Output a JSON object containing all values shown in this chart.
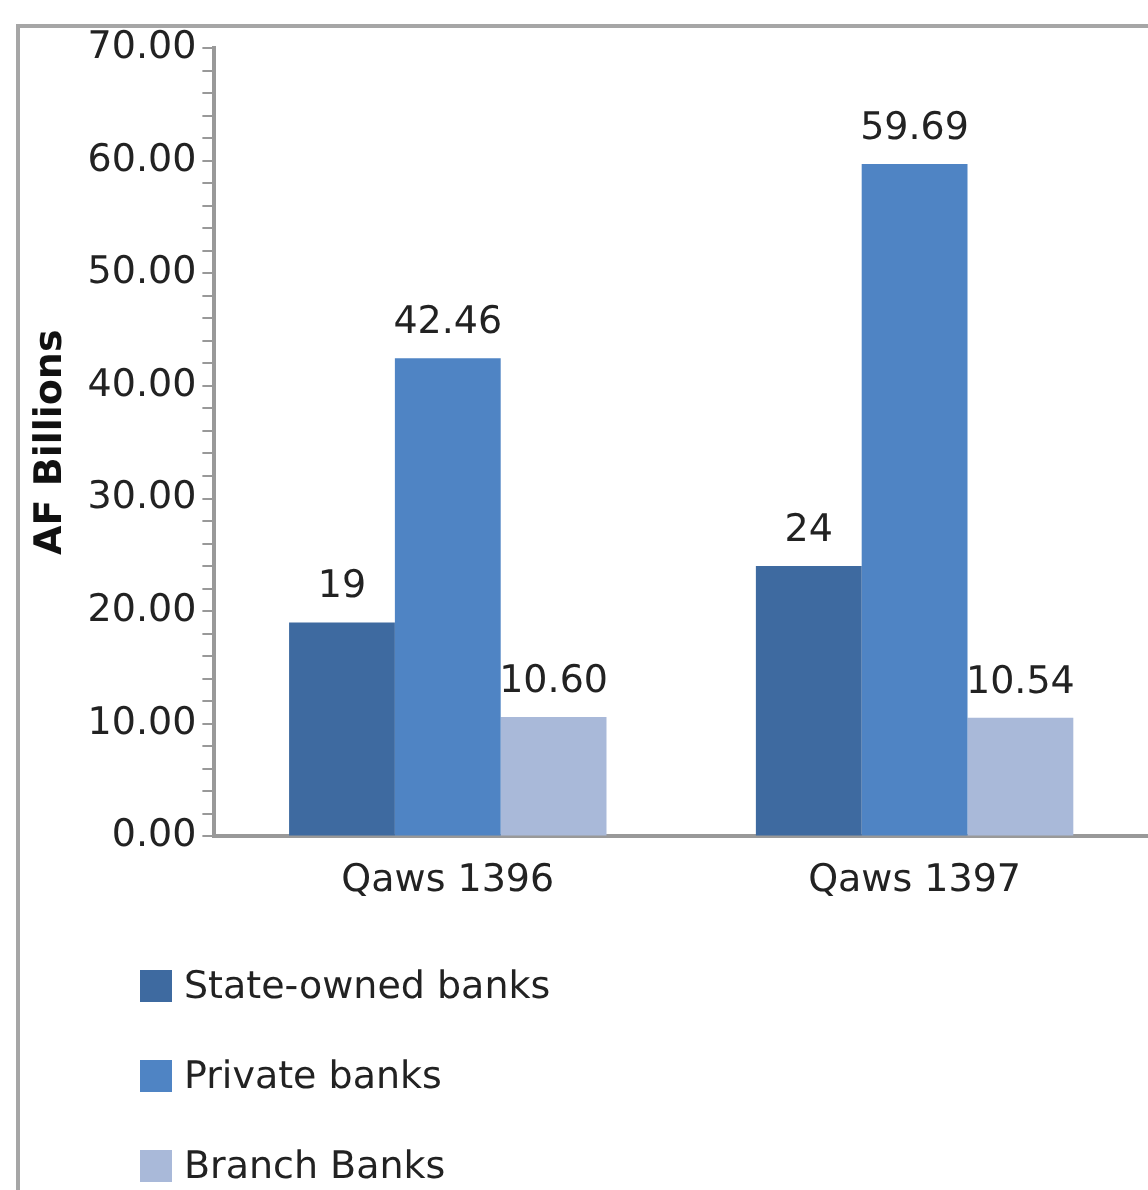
{
  "chart_data": {
    "type": "bar",
    "ylabel": "AF Billions",
    "categories": [
      "Qaws 1396",
      "Qaws 1397"
    ],
    "series": [
      {
        "name": "State-owned banks",
        "color": "#3e6aa0",
        "values": [
          19,
          24
        ],
        "value_labels": [
          "19",
          "24"
        ]
      },
      {
        "name": "Private banks",
        "color": "#4f84c4",
        "values": [
          42.46,
          59.69
        ],
        "value_labels": [
          "42.46",
          "59.69"
        ]
      },
      {
        "name": "Branch Banks",
        "color": "#a9b9d9",
        "values": [
          10.6,
          10.54
        ],
        "value_labels": [
          "10.60",
          "10.54"
        ]
      }
    ],
    "ylim": [
      0,
      70
    ],
    "yticks": [
      {
        "value": 0,
        "label": "0.00"
      },
      {
        "value": 2,
        "label": null
      },
      {
        "value": 4,
        "label": null
      },
      {
        "value": 6,
        "label": null
      },
      {
        "value": 8,
        "label": null
      },
      {
        "value": 10,
        "label": "10.00"
      },
      {
        "value": 12,
        "label": null
      },
      {
        "value": 14,
        "label": null
      },
      {
        "value": 16,
        "label": null
      },
      {
        "value": 18,
        "label": null
      },
      {
        "value": 20,
        "label": "20.00"
      },
      {
        "value": 22,
        "label": null
      },
      {
        "value": 24,
        "label": null
      },
      {
        "value": 26,
        "label": null
      },
      {
        "value": 28,
        "label": null
      },
      {
        "value": 30,
        "label": "30.00"
      },
      {
        "value": 32,
        "label": null
      },
      {
        "value": 34,
        "label": null
      },
      {
        "value": 36,
        "label": null
      },
      {
        "value": 38,
        "label": null
      },
      {
        "value": 40,
        "label": "40.00"
      },
      {
        "value": 42,
        "label": null
      },
      {
        "value": 44,
        "label": null
      },
      {
        "value": 46,
        "label": null
      },
      {
        "value": 48,
        "label": null
      },
      {
        "value": 50,
        "label": "50.00"
      },
      {
        "value": 52,
        "label": null
      },
      {
        "value": 54,
        "label": null
      },
      {
        "value": 56,
        "label": null
      },
      {
        "value": 58,
        "label": null
      },
      {
        "value": 60,
        "label": "60.00"
      },
      {
        "value": 62,
        "label": null
      },
      {
        "value": 64,
        "label": null
      },
      {
        "value": 66,
        "label": null
      },
      {
        "value": 68,
        "label": null
      },
      {
        "value": 70,
        "label": "70.00"
      }
    ],
    "grid": false,
    "legend": "bottom"
  }
}
